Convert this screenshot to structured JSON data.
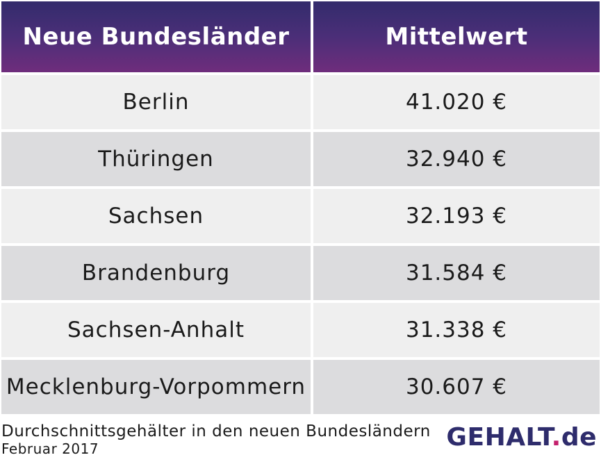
{
  "chart_data": {
    "type": "table",
    "columns": [
      "Neue Bundesländer",
      "Mittelwert"
    ],
    "rows": [
      {
        "state": "Berlin",
        "value": "41.020 €"
      },
      {
        "state": "Thüringen",
        "value": "32.940 €"
      },
      {
        "state": "Sachsen",
        "value": "32.193 €"
      },
      {
        "state": "Brandenburg",
        "value": "31.584 €"
      },
      {
        "state": "Sachsen-Anhalt",
        "value": "31.338 €"
      },
      {
        "state": "Mecklenburg-Vorpommern",
        "value": "30.607 €"
      }
    ]
  },
  "footer": {
    "caption": "Durchschnittsgehälter in den neuen Bundesländern",
    "date": "Februar 2017"
  },
  "logo": {
    "name": "GEHALT",
    "dot": ".",
    "tld": "de"
  },
  "colors": {
    "header_top": "#332c6c",
    "header_bottom": "#6f2d7c",
    "row_light": "#efefef",
    "row_dark": "#dcdcde",
    "logo_accent": "#c4206c"
  }
}
